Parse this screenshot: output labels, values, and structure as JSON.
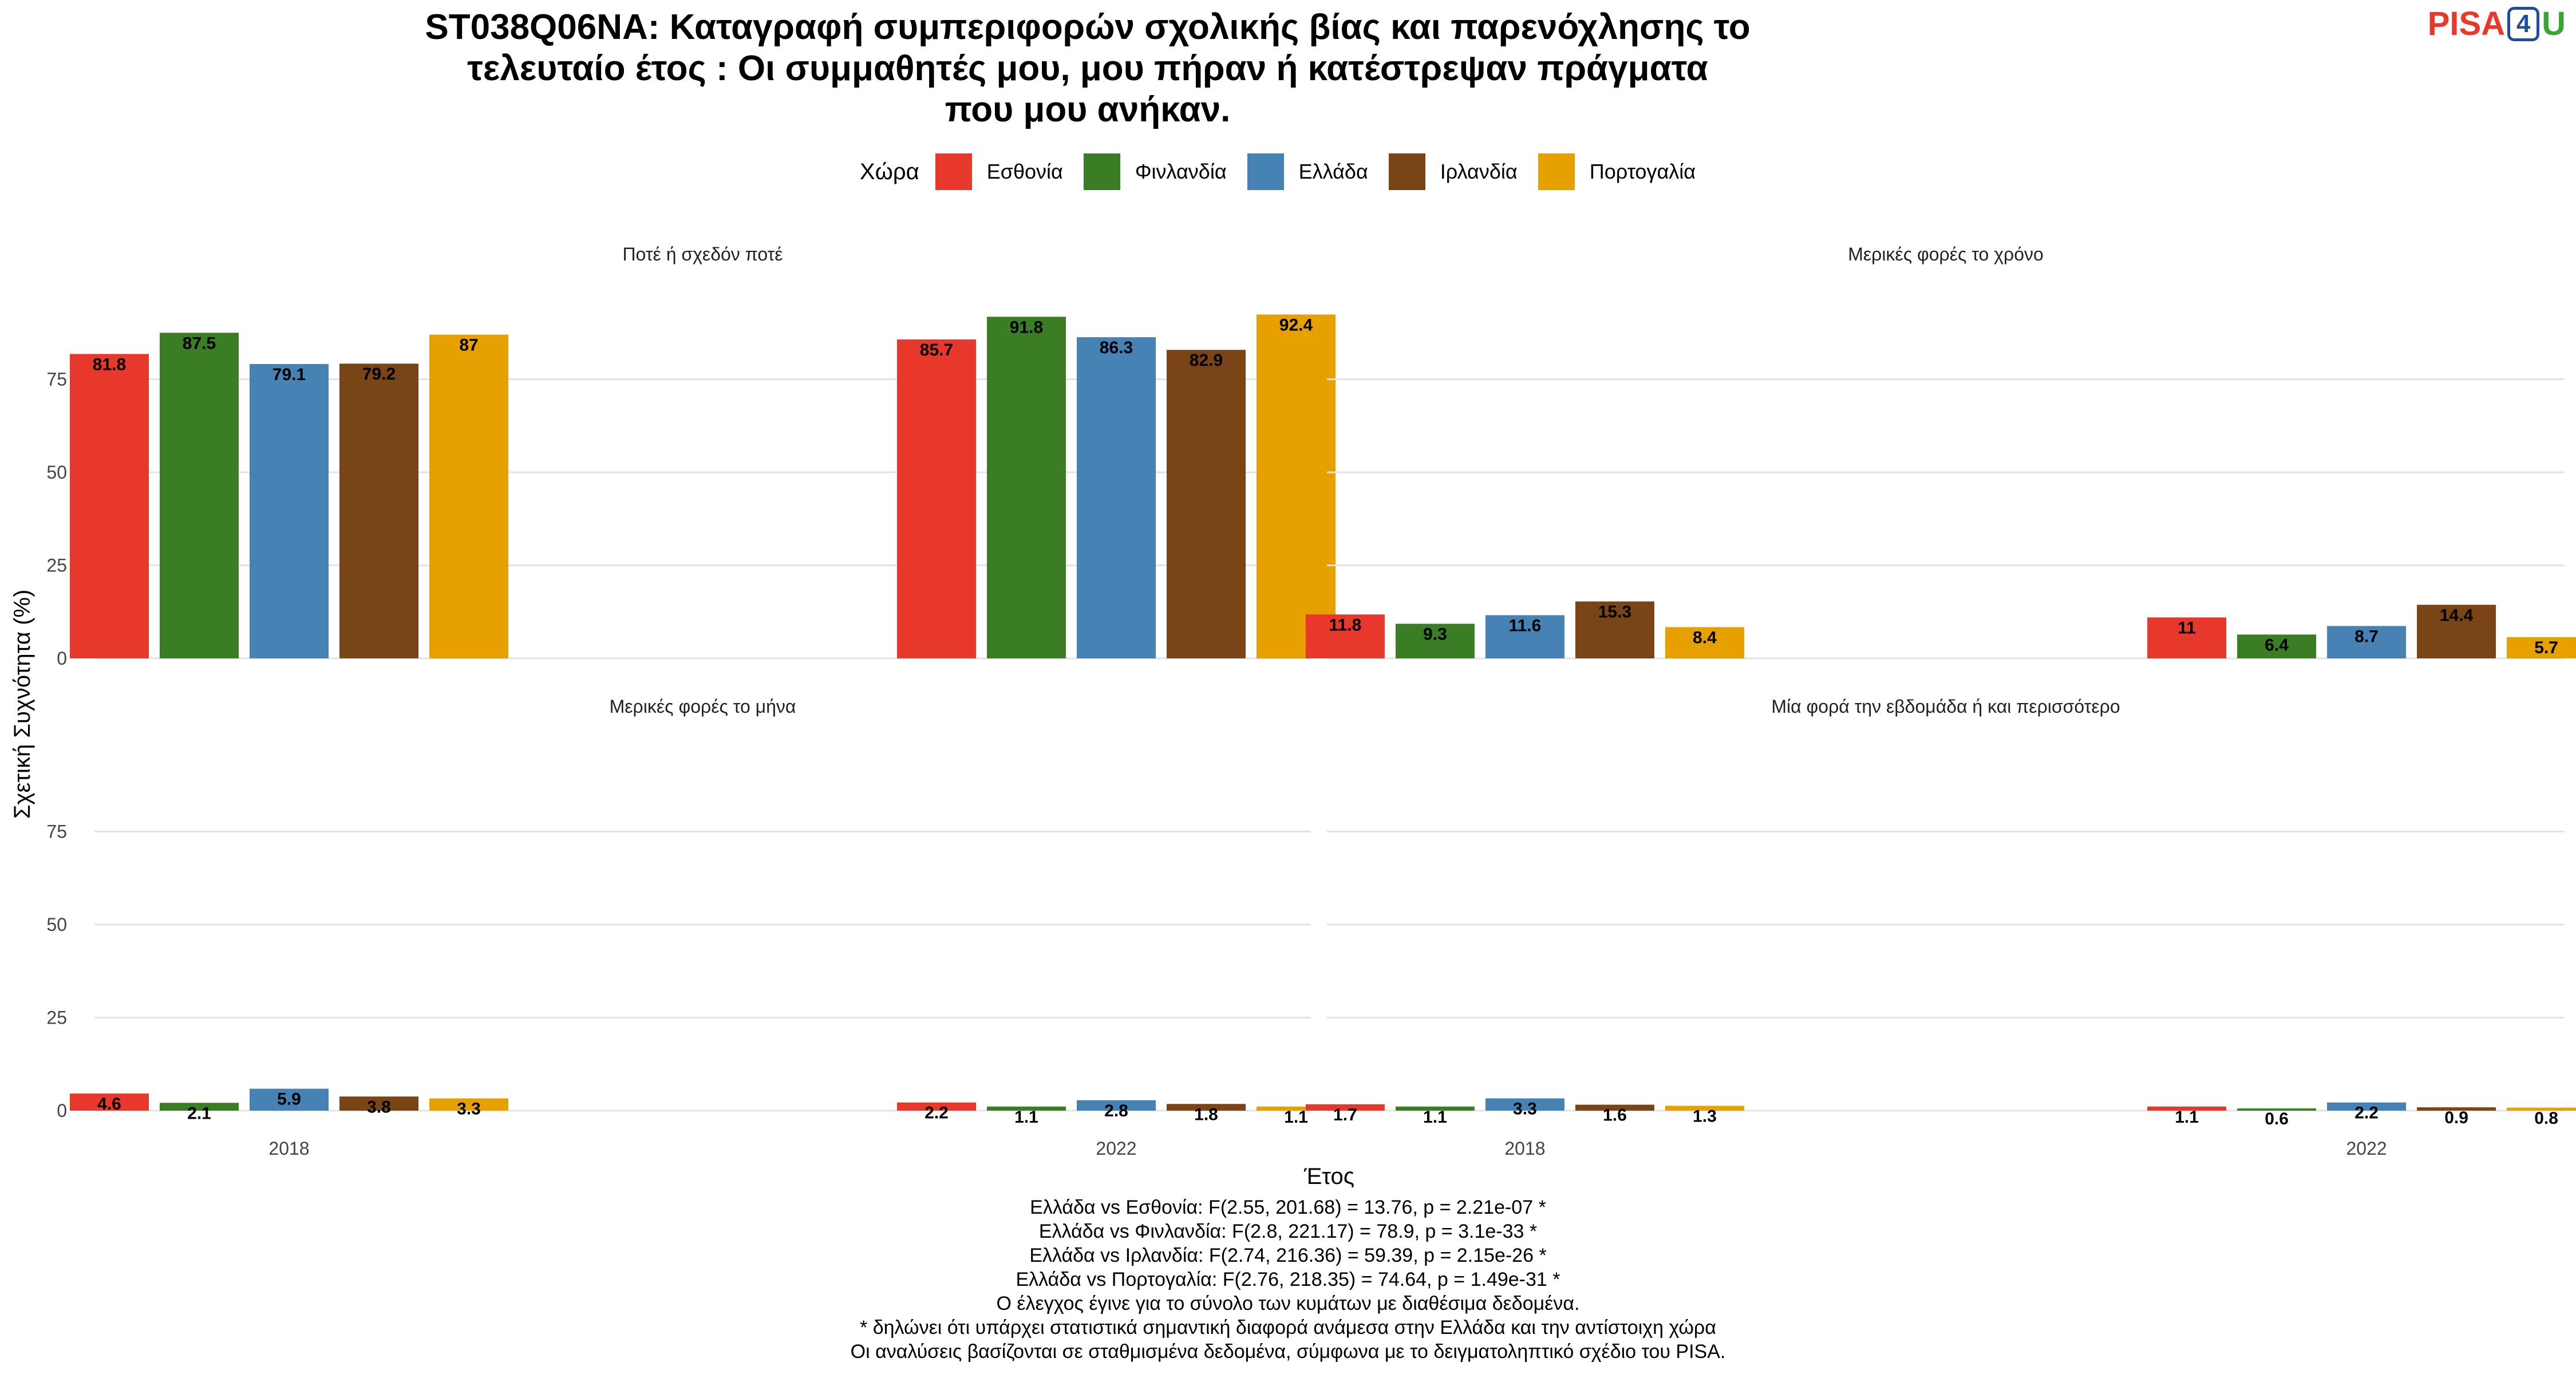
{
  "title_lines": [
    "ST038Q06NA: Καταγραφή συμπεριφορών σχολικής βίας και παρενόχλησης το",
    "τελευταίο έτος : Οι συμμαθητές μου, μου πήραν ή κατέστρεψαν πράγματα",
    "που μου ανήκαν."
  ],
  "logo": {
    "part1": "PISA",
    "part2": "4",
    "part3": "U"
  },
  "legend": {
    "title": "Χώρα",
    "items": [
      {
        "label": "Εσθονία",
        "color": "#E8382B"
      },
      {
        "label": "Φινλανδία",
        "color": "#3A7D24"
      },
      {
        "label": "Ελλάδα",
        "color": "#4682B4"
      },
      {
        "label": "Ιρλανδία",
        "color": "#7A4516"
      },
      {
        "label": "Πορτογαλία",
        "color": "#E6A100"
      }
    ]
  },
  "axis": {
    "ylabel": "Σχετική Συχνότητα (%)",
    "xlabel": "Έτος"
  },
  "chart_data": {
    "type": "bar",
    "ylabel": "Σχετική Συχνότητα (%)",
    "xlabel": "Έτος",
    "ylim": [
      0,
      100
    ],
    "yticks": [
      0,
      25,
      50,
      75
    ],
    "categories": [
      "2018",
      "2022"
    ],
    "series_names": [
      "Εσθονία",
      "Φινλανδία",
      "Ελλάδα",
      "Ιρλανδία",
      "Πορτογαλία"
    ],
    "panels": [
      {
        "title": "Ποτέ ή σχεδόν ποτέ",
        "series": [
          {
            "name": "Εσθονία",
            "values": [
              81.8,
              85.7
            ]
          },
          {
            "name": "Φινλανδία",
            "values": [
              87.5,
              91.8
            ]
          },
          {
            "name": "Ελλάδα",
            "values": [
              79.1,
              86.3
            ]
          },
          {
            "name": "Ιρλανδία",
            "values": [
              79.2,
              82.9
            ]
          },
          {
            "name": "Πορτογαλία",
            "values": [
              87,
              92.4
            ]
          }
        ]
      },
      {
        "title": "Μερικές φορές το χρόνο",
        "series": [
          {
            "name": "Εσθονία",
            "values": [
              11.8,
              11
            ]
          },
          {
            "name": "Φινλανδία",
            "values": [
              9.3,
              6.4
            ]
          },
          {
            "name": "Ελλάδα",
            "values": [
              11.6,
              8.7
            ]
          },
          {
            "name": "Ιρλανδία",
            "values": [
              15.3,
              14.4
            ]
          },
          {
            "name": "Πορτογαλία",
            "values": [
              8.4,
              5.7
            ]
          }
        ]
      },
      {
        "title": "Μερικές φορές το μήνα",
        "series": [
          {
            "name": "Εσθονία",
            "values": [
              4.6,
              2.2
            ]
          },
          {
            "name": "Φινλανδία",
            "values": [
              2.1,
              1.1
            ]
          },
          {
            "name": "Ελλάδα",
            "values": [
              5.9,
              2.8
            ]
          },
          {
            "name": "Ιρλανδία",
            "values": [
              3.8,
              1.8
            ]
          },
          {
            "name": "Πορτογαλία",
            "values": [
              3.3,
              1.1
            ]
          }
        ]
      },
      {
        "title": "Μία φορά την εβδομάδα ή και περισσότερο",
        "series": [
          {
            "name": "Εσθονία",
            "values": [
              1.7,
              1.1
            ]
          },
          {
            "name": "Φινλανδία",
            "values": [
              1.1,
              0.6
            ]
          },
          {
            "name": "Ελλάδα",
            "values": [
              3.3,
              2.2
            ]
          },
          {
            "name": "Ιρλανδία",
            "values": [
              1.6,
              0.9
            ]
          },
          {
            "name": "Πορτογαλία",
            "values": [
              1.3,
              0.8
            ]
          }
        ]
      }
    ]
  },
  "notes": [
    "Ελλάδα vs Εσθονία: F(2.55, 201.68) = 13.76, p = 2.21e-07 *",
    "Ελλάδα vs Φινλανδία: F(2.8, 221.17) = 78.9, p = 3.1e-33 *",
    "Ελλάδα vs Ιρλανδία: F(2.74, 216.36) = 59.39, p = 2.15e-26 *",
    "Ελλάδα vs Πορτογαλία: F(2.76, 218.35) = 74.64, p = 1.49e-31 *",
    "Ο έλεγχος έγινε για το σύνολο των κυμάτων με διαθέσιμα δεδομένα.",
    "* δηλώνει ότι υπάρχει στατιστικά σημαντική διαφορά ανάμεσα στην Ελλάδα και την αντίστοιχη χώρα",
    "Οι αναλύσεις βασίζονται σε σταθμισμένα δεδομένα, σύμφωνα με το δειγματοληπτικό σχέδιο του PISA."
  ]
}
